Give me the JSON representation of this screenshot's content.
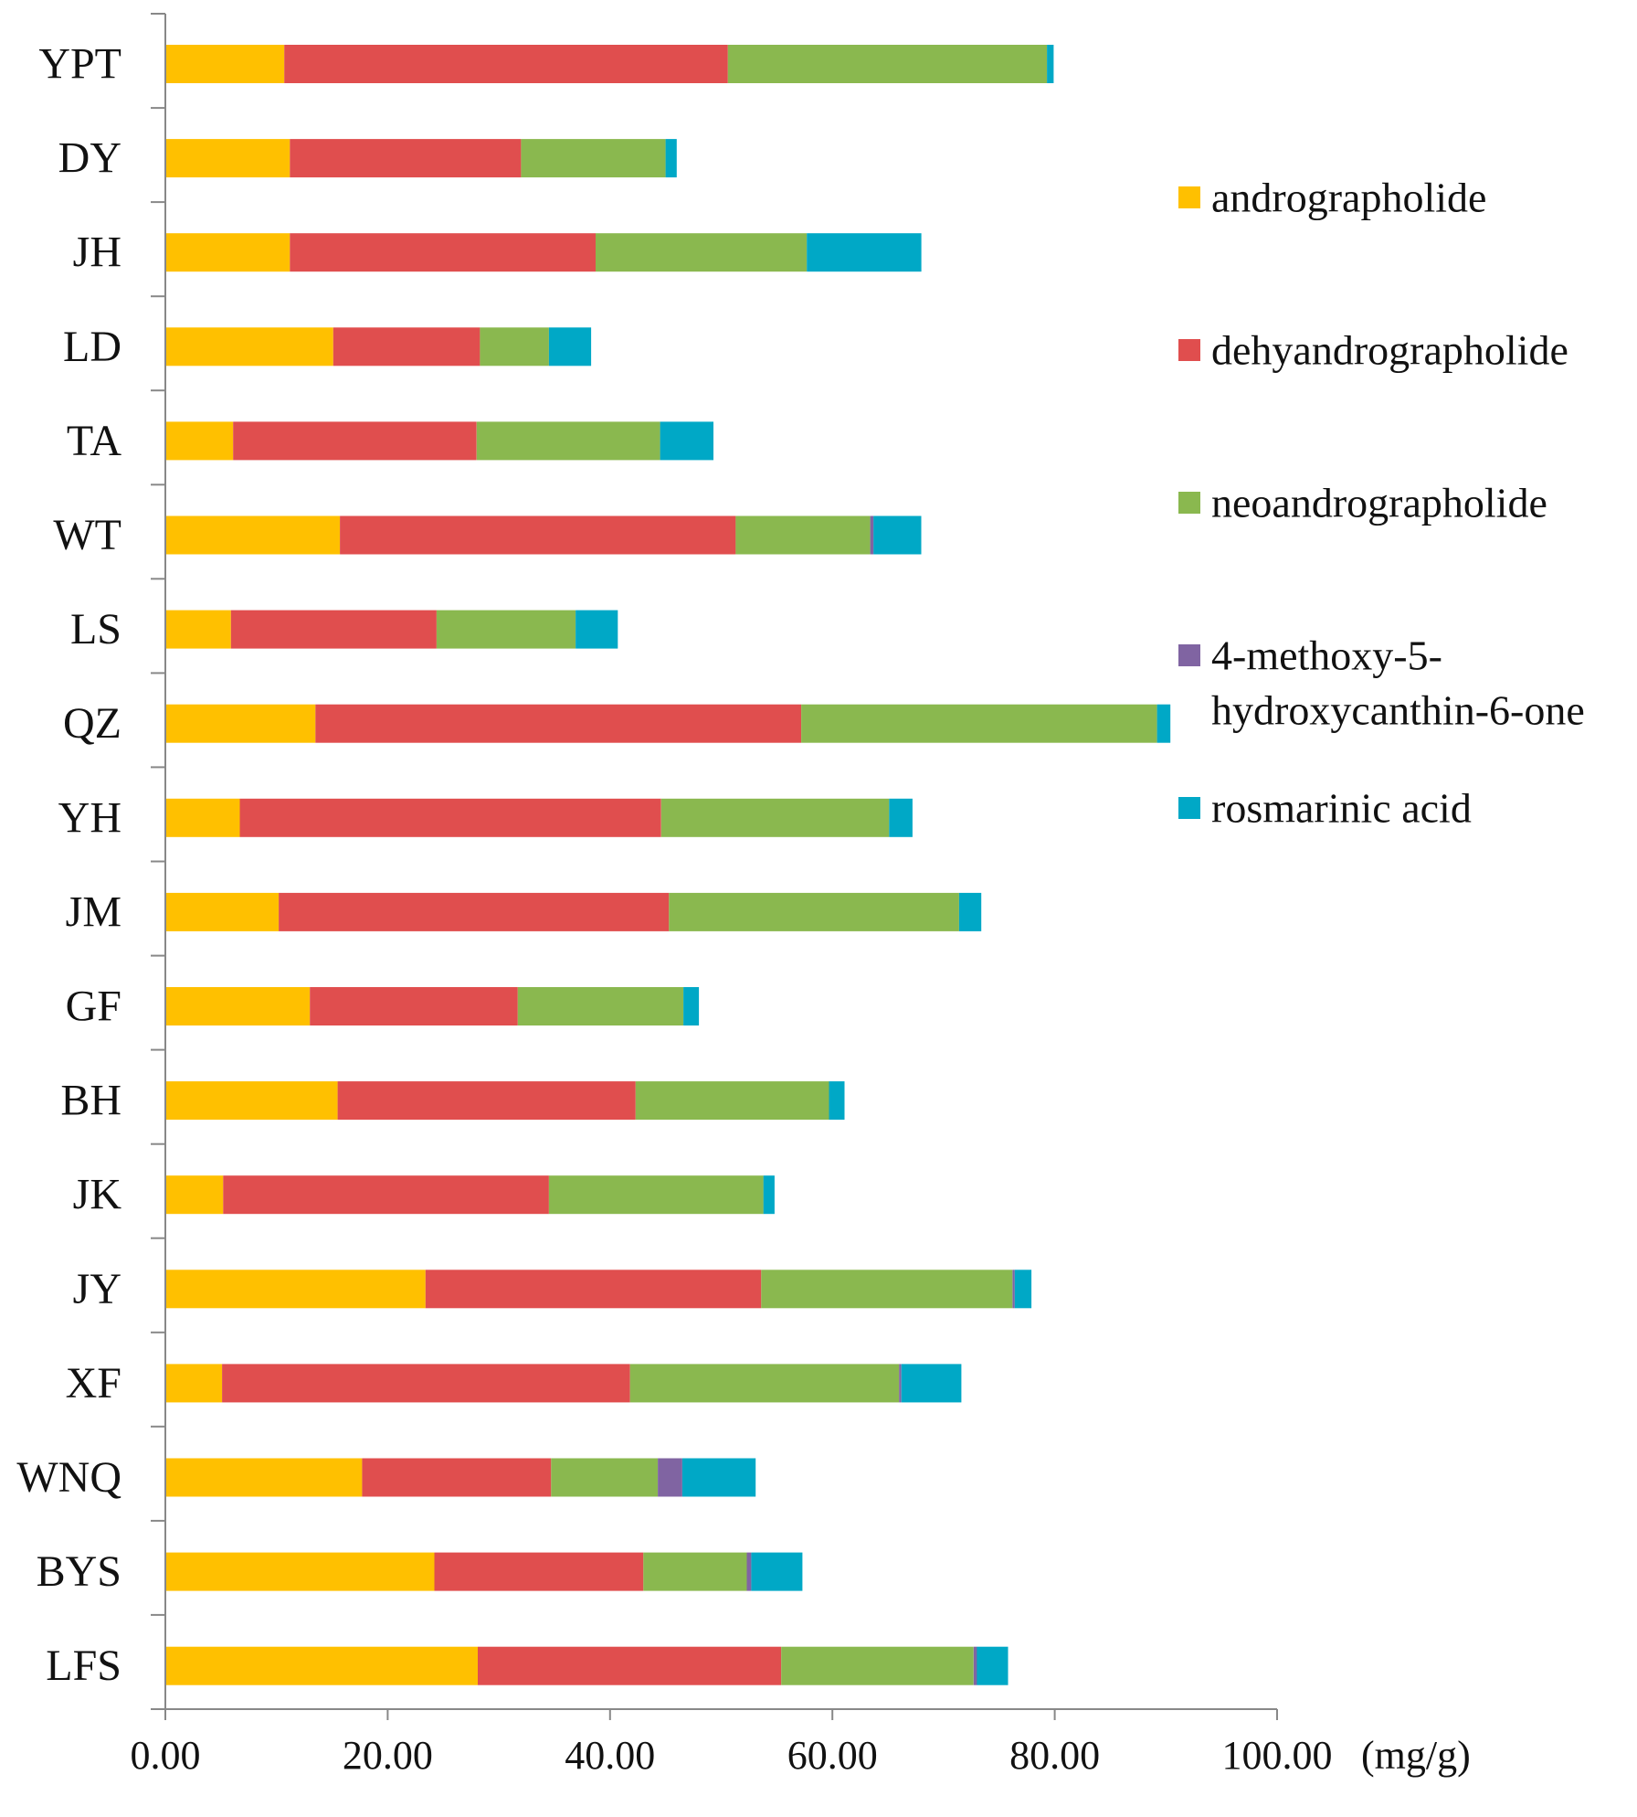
{
  "chart_data": {
    "type": "bar",
    "orientation": "horizontal",
    "stacked": true,
    "title": "",
    "xlabel": "",
    "ylabel": "",
    "x_unit": "(mg/g)",
    "xlim": [
      0,
      100
    ],
    "x_ticks": [
      0,
      20,
      40,
      60,
      80,
      100
    ],
    "x_tick_labels": [
      "0.00",
      "20.00",
      "40.00",
      "60.00",
      "80.00",
      "100.00"
    ],
    "categories": [
      "YPT",
      "DY",
      "JH",
      "LD",
      "TA",
      "WT",
      "LS",
      "QZ",
      "YH",
      "JM",
      "GF",
      "BH",
      "JK",
      "JY",
      "XF",
      "WNQ",
      "BYS",
      "LFS"
    ],
    "series": [
      {
        "name": "andrographolide",
        "color": "#ffc000",
        "values": [
          10.7,
          11.2,
          11.2,
          15.1,
          6.1,
          15.7,
          5.9,
          13.5,
          6.7,
          10.2,
          13.0,
          15.5,
          5.2,
          23.4,
          5.1,
          17.7,
          24.2,
          28.1
        ]
      },
      {
        "name": "dehyandrographolide",
        "color": "#e04e4e",
        "values": [
          39.9,
          20.8,
          27.5,
          13.2,
          21.9,
          35.6,
          18.5,
          43.7,
          37.9,
          35.1,
          18.7,
          26.8,
          29.3,
          30.2,
          36.7,
          17.0,
          18.8,
          27.3
        ]
      },
      {
        "name": "neoandrographolide",
        "color": "#8ab84f",
        "values": [
          28.7,
          13.0,
          19.0,
          6.2,
          16.5,
          12.1,
          12.5,
          32.0,
          20.5,
          26.1,
          14.9,
          17.4,
          19.3,
          22.6,
          24.2,
          9.6,
          9.3,
          17.3
        ]
      },
      {
        "name": "4-methoxy-5-hydroxycanthin-6-one",
        "color": "#8064a2",
        "values": [
          0,
          0,
          0,
          0,
          0,
          0.3,
          0,
          0,
          0,
          0,
          0,
          0,
          0,
          0.2,
          0.2,
          2.2,
          0.4,
          0.3
        ]
      },
      {
        "name": "rosmarinic acid",
        "color": "#00a8c6",
        "values": [
          0.6,
          1.0,
          10.3,
          3.8,
          4.8,
          4.3,
          3.8,
          1.2,
          2.1,
          2.0,
          1.4,
          1.4,
          1.0,
          1.5,
          5.4,
          6.6,
          4.6,
          2.8
        ]
      }
    ],
    "legend": {
      "position": "right",
      "items": [
        {
          "lines": [
            "andrographolide"
          ],
          "color": "#ffc000"
        },
        {
          "lines": [
            "dehyandrographolide"
          ],
          "color": "#e04e4e"
        },
        {
          "lines": [
            "neoandrographolide"
          ],
          "color": "#8ab84f"
        },
        {
          "lines": [
            "4-methoxy-5-",
            "hydroxycanthin-6-one"
          ],
          "color": "#8064a2"
        },
        {
          "lines": [
            "rosmarinic acid"
          ],
          "color": "#00a8c6"
        }
      ]
    },
    "grid": false
  }
}
